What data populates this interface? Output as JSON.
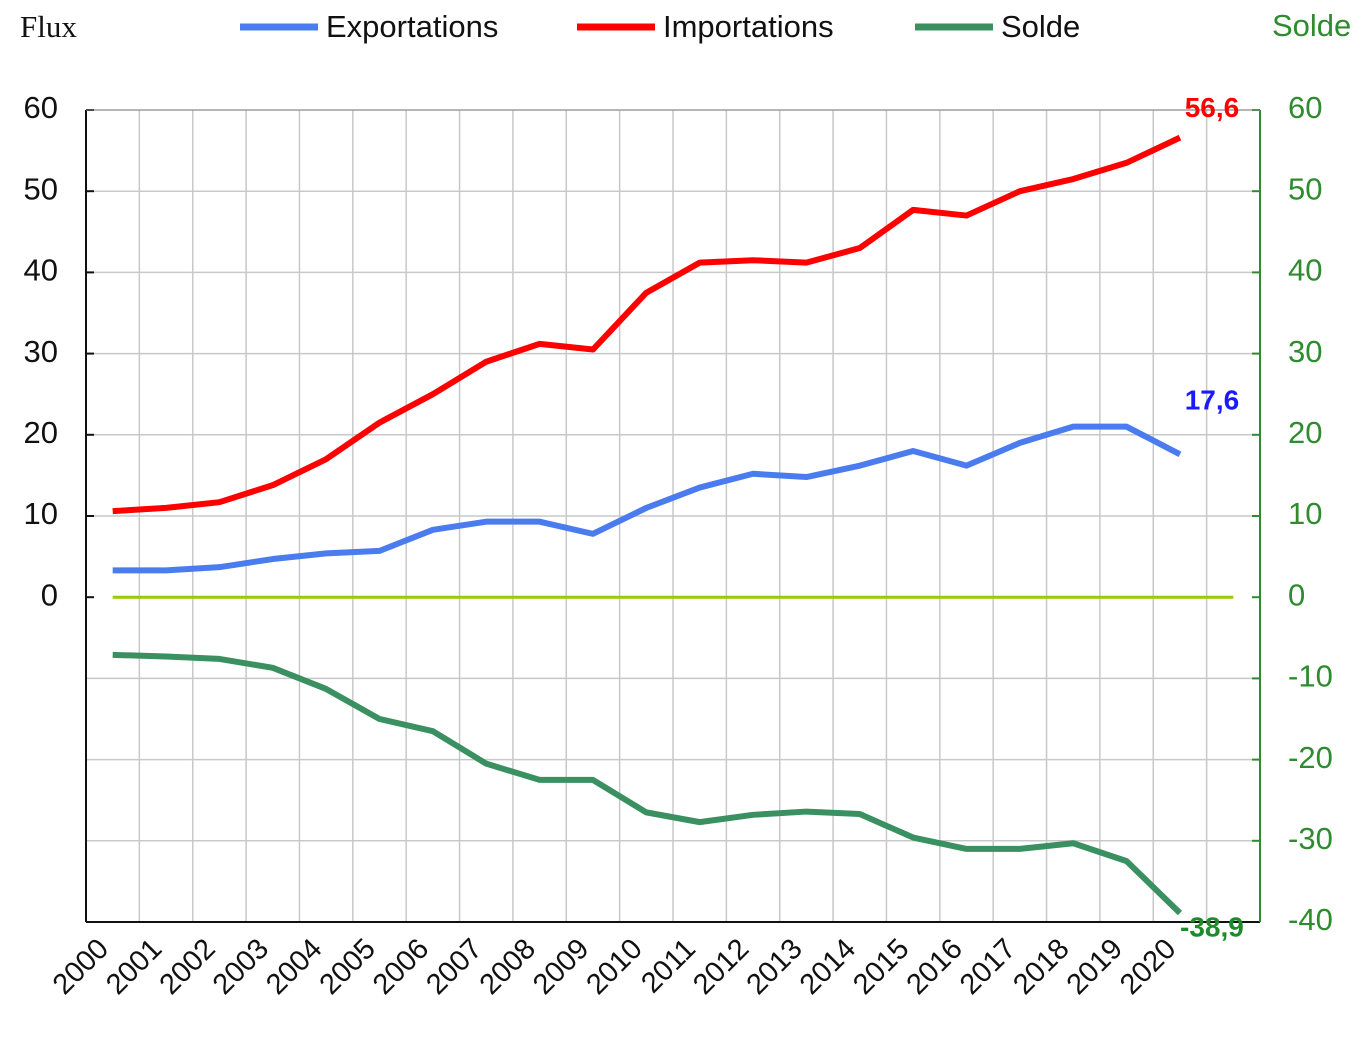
{
  "chart_data": {
    "type": "line",
    "ylabel": "Flux",
    "y2label": "Solde",
    "categories": [
      "2000",
      "2001",
      "2002",
      "2003",
      "2004",
      "2005",
      "2006",
      "2007",
      "2008",
      "2009",
      "2010",
      "2011",
      "2012",
      "2013",
      "2014",
      "2015",
      "2016",
      "2017",
      "2018",
      "2019",
      "2020"
    ],
    "series": [
      {
        "name": "Exportations",
        "color": "#4a7cf0",
        "values": [
          3.3,
          3.3,
          3.7,
          4.7,
          5.4,
          5.7,
          8.3,
          9.3,
          9.3,
          7.8,
          11,
          13.5,
          15.2,
          14.8,
          16.2,
          18,
          16.2,
          19,
          21,
          21,
          17.6
        ],
        "value_labels": [
          null,
          null,
          null,
          null,
          null,
          null,
          null,
          null,
          null,
          null,
          null,
          null,
          null,
          null,
          null,
          null,
          null,
          null,
          null,
          null,
          "17,6"
        ],
        "label_color": "#1a1aff"
      },
      {
        "name": "Importations",
        "color": "#ff0000",
        "values": [
          10.6,
          11,
          11.7,
          13.8,
          17,
          21.5,
          25,
          29,
          31.2,
          30.5,
          37.5,
          41.2,
          41.5,
          41.2,
          43,
          47.7,
          47,
          50,
          51.5,
          53.5,
          56.6
        ],
        "value_labels": [
          null,
          null,
          null,
          null,
          null,
          null,
          null,
          null,
          null,
          null,
          null,
          null,
          null,
          null,
          null,
          null,
          null,
          null,
          null,
          null,
          "56,6"
        ],
        "label_color": "#ff0000"
      },
      {
        "name": "Solde",
        "color": "#3a9060",
        "axis": "y2",
        "values": [
          -7.1,
          -7.3,
          -7.6,
          -8.7,
          -11.3,
          -15,
          -16.5,
          -20.5,
          -22.5,
          -22.5,
          -26.5,
          -27.7,
          -26.8,
          -26.4,
          -26.7,
          -29.6,
          -31,
          -31,
          -30.3,
          -32.5,
          -38.9
        ],
        "value_labels": [
          null,
          null,
          null,
          null,
          null,
          null,
          null,
          null,
          null,
          null,
          null,
          null,
          null,
          null,
          null,
          null,
          null,
          null,
          null,
          null,
          "-38,9"
        ],
        "label_color": "#1f8a2a"
      }
    ],
    "ylim": [
      -40,
      60
    ],
    "yticks": [
      0,
      10,
      20,
      30,
      40,
      50,
      60
    ],
    "y2lim": [
      -40,
      60
    ],
    "y2ticks": [
      -40,
      -30,
      -20,
      -10,
      0,
      10,
      20,
      30,
      40,
      50,
      60
    ],
    "y2color": "#2e8b2e",
    "zero_line_color": "#99cc00",
    "grid": true
  }
}
